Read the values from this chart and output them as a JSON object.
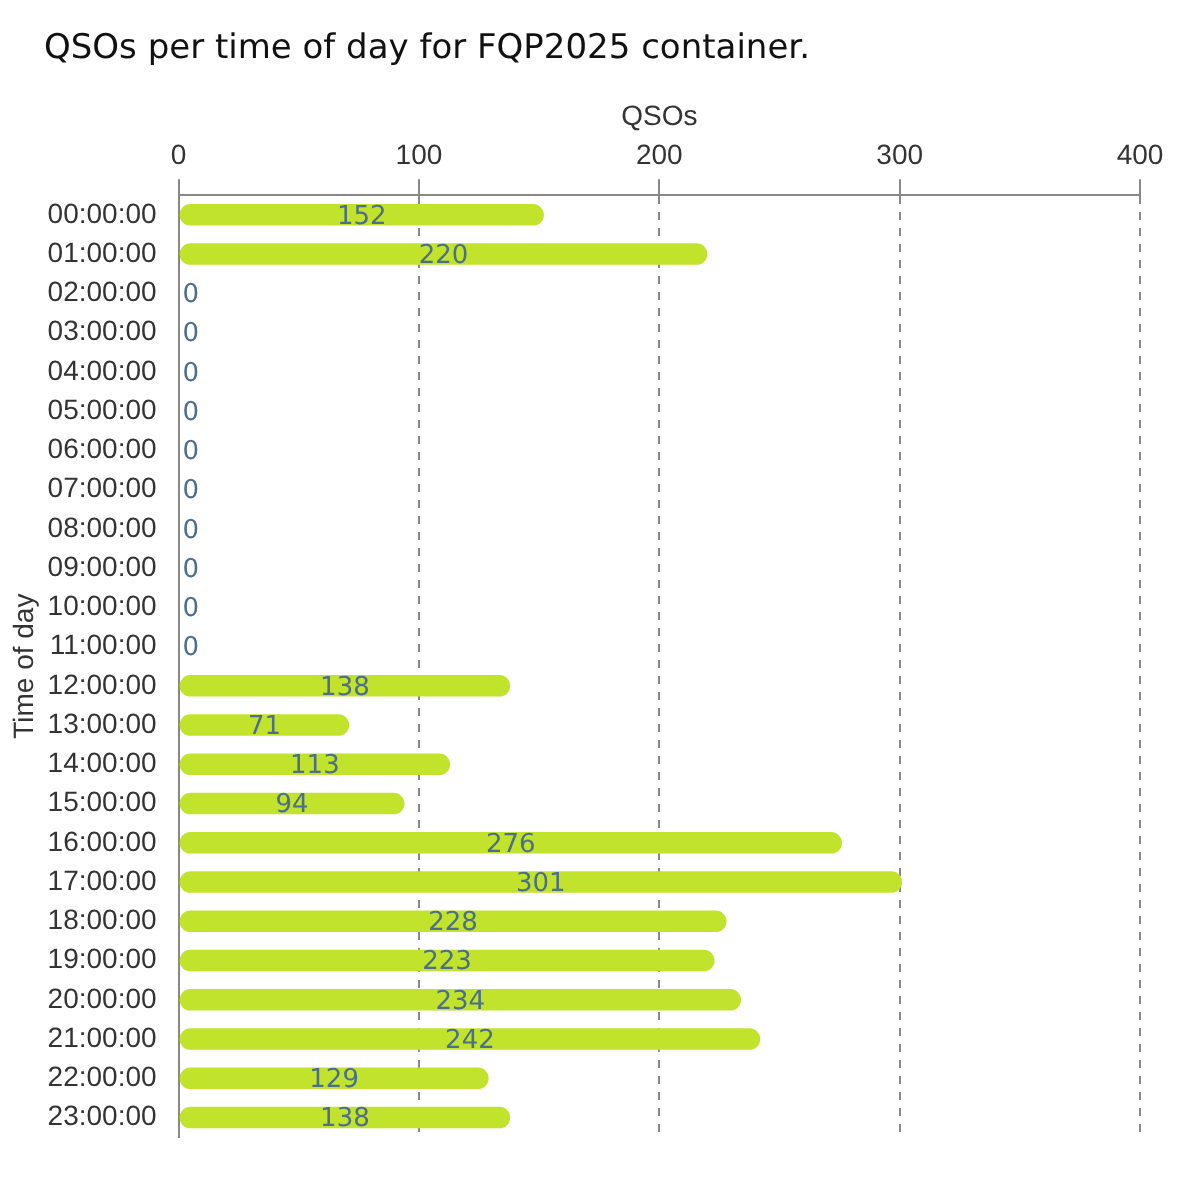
{
  "chart_data": {
    "type": "bar",
    "title": "QSOs per time of day for FQP2025 container.",
    "xlabel": "QSOs",
    "ylabel": "Time of day",
    "orientation": "horizontal",
    "categories": [
      "00:00:00",
      "01:00:00",
      "02:00:00",
      "03:00:00",
      "04:00:00",
      "05:00:00",
      "06:00:00",
      "07:00:00",
      "08:00:00",
      "09:00:00",
      "10:00:00",
      "11:00:00",
      "12:00:00",
      "13:00:00",
      "14:00:00",
      "15:00:00",
      "16:00:00",
      "17:00:00",
      "18:00:00",
      "19:00:00",
      "20:00:00",
      "21:00:00",
      "22:00:00",
      "23:00:00"
    ],
    "values": [
      152,
      220,
      0,
      0,
      0,
      0,
      0,
      0,
      0,
      0,
      0,
      0,
      138,
      71,
      113,
      94,
      276,
      301,
      228,
      223,
      234,
      242,
      129,
      138
    ],
    "color": "#c2e32c",
    "xlim": [
      0,
      400
    ],
    "xticks": [
      0,
      100,
      200,
      300,
      400
    ],
    "grid": "x",
    "data_labels": true,
    "legend": false
  }
}
